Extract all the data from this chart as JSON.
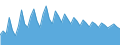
{
  "values": [
    20,
    28,
    22,
    55,
    30,
    18,
    38,
    70,
    42,
    35,
    58,
    72,
    48,
    35,
    62,
    78,
    52,
    42,
    68,
    58,
    45,
    62,
    52,
    42,
    55,
    48,
    38,
    50,
    44,
    36,
    46,
    42,
    35,
    44,
    40,
    34,
    38,
    42,
    36,
    32
  ],
  "line_color": "#4499cc",
  "fill_color": "#5aaadd",
  "background_color": "#ffffff",
  "ylim_min": 0,
  "ylim_max": 90,
  "linewidth": 0.7
}
